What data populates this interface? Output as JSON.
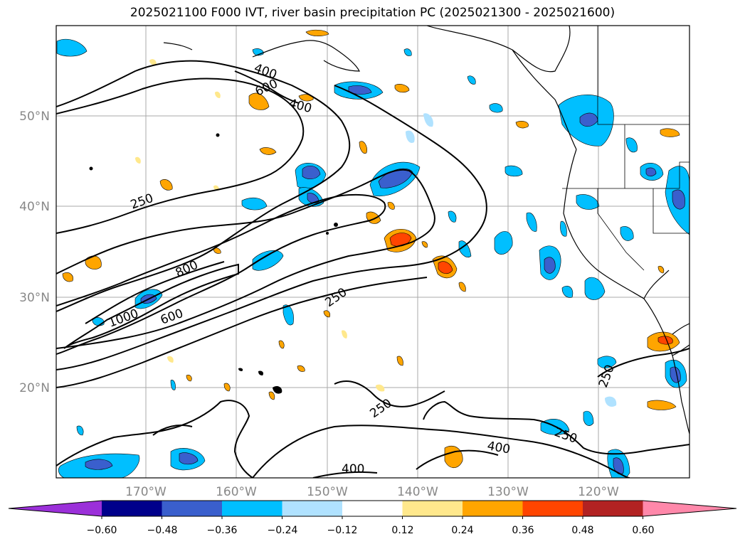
{
  "title": "2025021100 F000 IVT, river basin precipitation PC (2025021300 - 2025021600)",
  "latitude_labels": [
    "50°N",
    "40°N",
    "30°N",
    "20°N"
  ],
  "longitude_labels": [
    "170°W",
    "160°W",
    "150°W",
    "140°W",
    "130°W",
    "120°W"
  ],
  "ivt_contour_labels": [
    "400",
    "600",
    "400",
    "250",
    "800",
    "1000",
    "600",
    "250",
    "250",
    "250",
    "400",
    "400",
    "250"
  ],
  "colorbar": {
    "tick_labels": [
      "−0.60",
      "−0.48",
      "−0.36",
      "−0.24",
      "−0.12",
      "0.12",
      "0.24",
      "0.36",
      "0.48",
      "0.60"
    ],
    "colors": [
      "#9b30d9",
      "#00008b",
      "#3a5fcd",
      "#00bfff",
      "#b0e2ff",
      "#ffffff",
      "#ffe88c",
      "#ffa500",
      "#ff4500",
      "#b22222",
      "#ff88aa"
    ]
  }
}
